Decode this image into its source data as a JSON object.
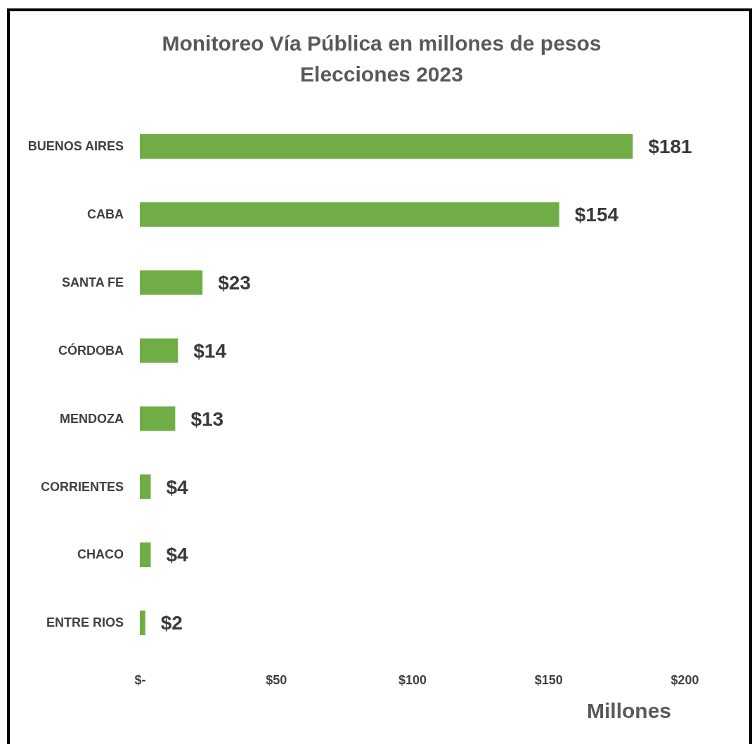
{
  "chart_data": {
    "type": "bar",
    "orientation": "horizontal",
    "title": "Monitoreo Vía Pública en millones de pesos",
    "subtitle": "Elecciones 2023",
    "xlabel": "Millones",
    "categories": [
      "BUENOS AIRES",
      "CABA",
      "SANTA FE",
      "CÓRDOBA",
      "MENDOZA",
      "CORRIENTES",
      "CHACO",
      "ENTRE RIOS"
    ],
    "values": [
      181,
      154,
      23,
      14,
      13,
      4,
      4,
      2
    ],
    "value_labels": [
      "$181",
      "$154",
      "$23",
      "$14",
      "$13",
      "$4",
      "$4",
      "$2"
    ],
    "color": "#70ad47",
    "xlim": [
      0,
      200
    ],
    "xticks": [
      {
        "value": 0,
        "label": "$-"
      },
      {
        "value": 50,
        "label": "$50"
      },
      {
        "value": 100,
        "label": "$100"
      },
      {
        "value": 150,
        "label": "$150"
      },
      {
        "value": 200,
        "label": "$200"
      }
    ],
    "grid": false
  }
}
